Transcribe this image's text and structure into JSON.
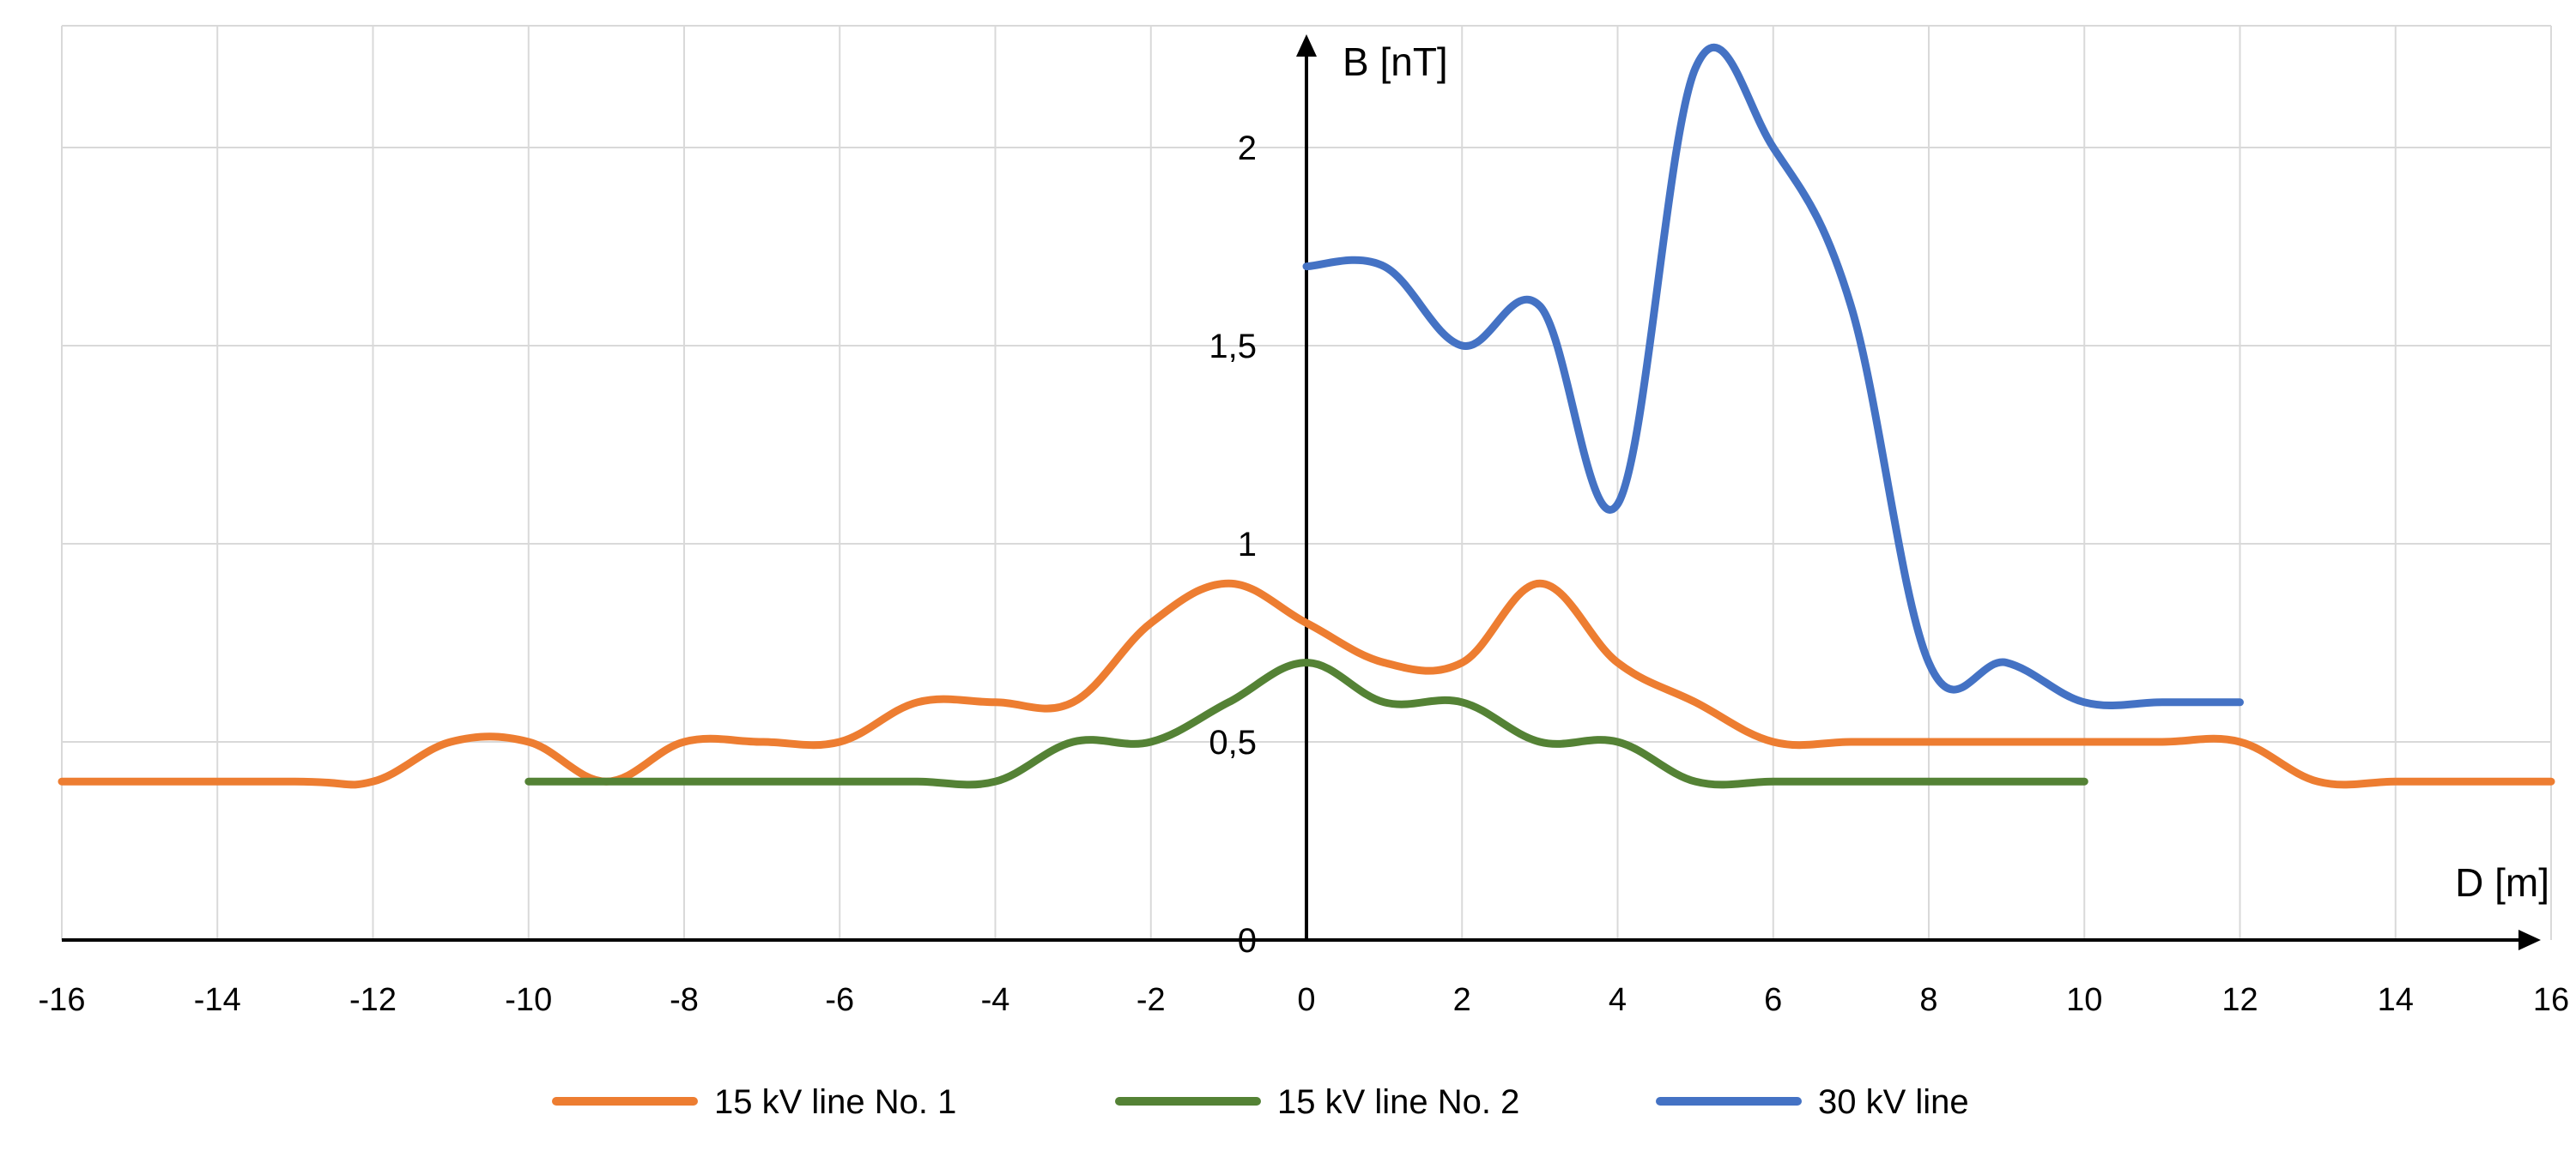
{
  "chart_data": {
    "type": "line",
    "title": "",
    "xlabel": "D [m]",
    "ylabel": "B [nT]",
    "xlim": [
      -16,
      16
    ],
    "ylim": [
      0,
      2.25
    ],
    "grid": true,
    "x_ticks": [
      -16,
      -14,
      -12,
      -10,
      -8,
      -6,
      -4,
      -2,
      0,
      2,
      4,
      6,
      8,
      10,
      12,
      14,
      16
    ],
    "x_tick_labels": [
      "-16",
      "-14",
      "-12",
      "-10",
      "-8",
      "-6",
      "-4",
      "-2",
      "0",
      "2",
      "4",
      "6",
      "8",
      "10",
      "12",
      "14",
      "16"
    ],
    "y_ticks": [
      0.5,
      1,
      1.5,
      2
    ],
    "y_tick_labels": [
      "0,5",
      "1",
      "1,5",
      "2"
    ],
    "origin_label": "0",
    "legend_position": "bottom-center",
    "series": [
      {
        "name": "15 kV line No. 1",
        "color": "#ED7D31",
        "x": [
          -16,
          -13,
          -12,
          -11,
          -10,
          -9,
          -8,
          -7,
          -6,
          -5,
          -4,
          -3,
          -2,
          -1,
          0,
          1,
          2,
          3,
          4,
          5,
          6,
          7,
          8,
          9,
          10,
          11,
          12,
          13,
          14,
          15,
          16
        ],
        "y": [
          0.4,
          0.4,
          0.4,
          0.5,
          0.5,
          0.4,
          0.5,
          0.5,
          0.5,
          0.6,
          0.6,
          0.6,
          0.8,
          0.9,
          0.8,
          0.7,
          0.7,
          0.9,
          0.7,
          0.6,
          0.5,
          0.5,
          0.5,
          0.5,
          0.5,
          0.5,
          0.5,
          0.4,
          0.4,
          0.4,
          0.4
        ]
      },
      {
        "name": "15 kV line No. 2",
        "color": "#548235",
        "x": [
          -10,
          -9,
          -8,
          -7,
          -6,
          -5,
          -4,
          -3,
          -2,
          -1,
          0,
          1,
          2,
          3,
          4,
          5,
          6,
          7,
          8,
          9,
          10
        ],
        "y": [
          0.4,
          0.4,
          0.4,
          0.4,
          0.4,
          0.4,
          0.4,
          0.5,
          0.5,
          0.6,
          0.7,
          0.6,
          0.6,
          0.5,
          0.5,
          0.4,
          0.4,
          0.4,
          0.4,
          0.4,
          0.4
        ]
      },
      {
        "name": "30 kV line",
        "color": "#4472C4",
        "x": [
          0,
          1,
          2,
          3,
          4,
          5,
          6,
          7,
          8,
          9,
          10,
          11,
          12
        ],
        "y": [
          1.7,
          1.7,
          1.5,
          1.6,
          1.1,
          2.2,
          2.0,
          1.6,
          0.7,
          0.7,
          0.6,
          0.6,
          0.6
        ]
      }
    ]
  }
}
